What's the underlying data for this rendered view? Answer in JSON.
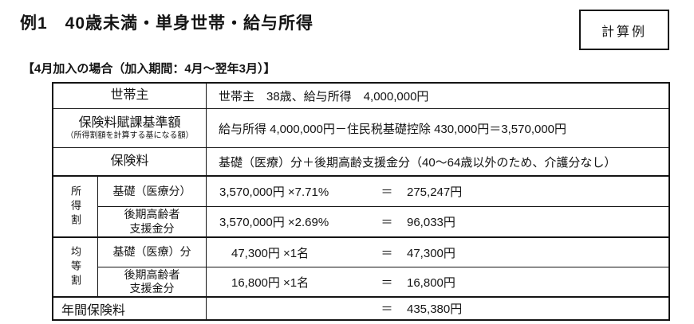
{
  "title": "例1　40歳未満・単身世帯・給与所得",
  "calc_box": {
    "label": "計算例"
  },
  "subtitle": "【4月加入の場合（加入期間：4月～翌年3月）】",
  "table": {
    "householder": {
      "label": "世帯主",
      "content": "世帯主　38歳、給与所得　4,000,000円"
    },
    "base_amount": {
      "label": "保険料賦課基準額",
      "note": "（所得割額を計算する基になる額）",
      "content": "給与所得 4,000,000円－住民税基礎控除 430,000円＝3,570,000円"
    },
    "premium": {
      "label": "保険料",
      "content": "基礎（医療）分＋後期高齢支援金分（40～64歳以外のため、介護分なし）"
    },
    "income_levy": {
      "group_label": "所得割",
      "items": [
        {
          "label": "基礎（医療分）",
          "formula": "3,570,000円 ×7.71%",
          "equals": "＝",
          "result": "275,247円"
        },
        {
          "label": "後期高齢者\n支援金分",
          "formula": "3,570,000円 ×2.69%",
          "equals": "＝",
          "result": "96,033円"
        }
      ]
    },
    "per_capita_levy": {
      "group_label": "均等割",
      "items": [
        {
          "label": "基礎（医療）分",
          "formula": "47,300円 ×1名",
          "equals": "＝",
          "result": "47,300円"
        },
        {
          "label": "後期高齢者\n支援金分",
          "formula": "16,800円 ×1名",
          "equals": "＝",
          "result": "16,800円"
        }
      ]
    },
    "annual": {
      "label": "年間保険料",
      "equals": "＝",
      "result": "435,380円"
    }
  }
}
